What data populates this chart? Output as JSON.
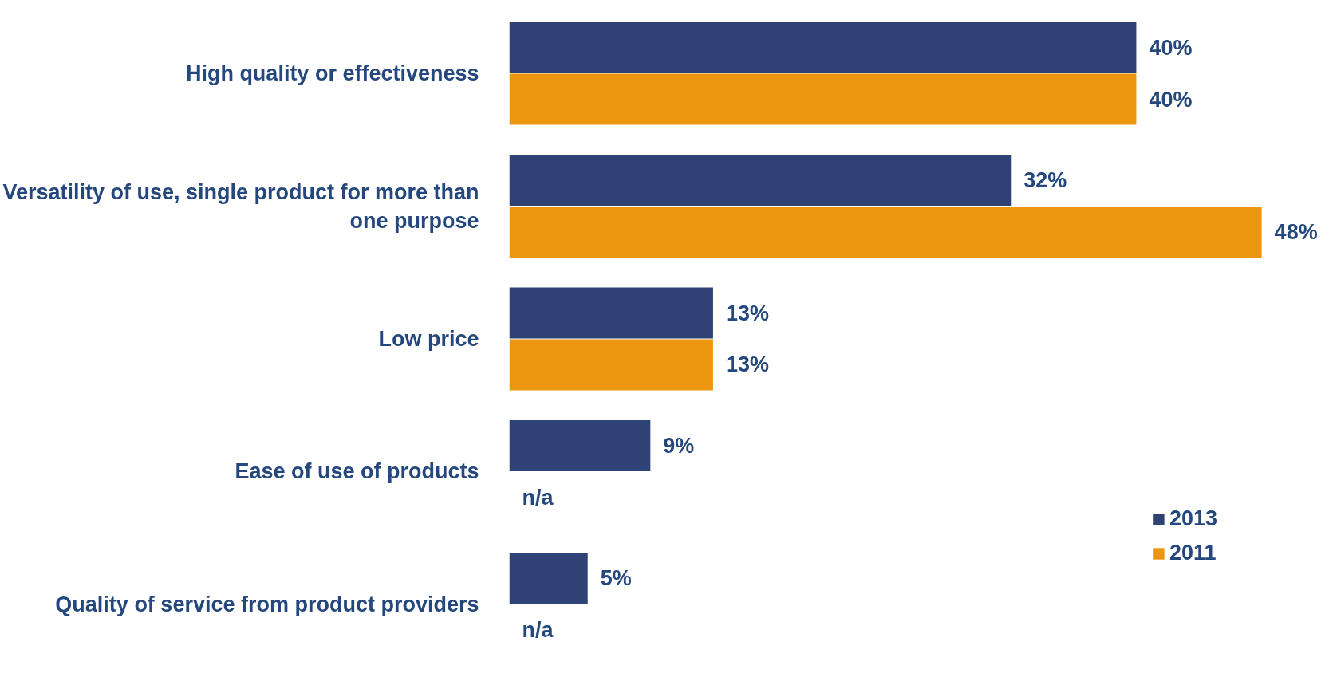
{
  "chart_data": {
    "type": "bar",
    "orientation": "horizontal",
    "categories": [
      "High quality or effectiveness",
      "Versatility of use, single product for more than one purpose",
      "Low price",
      "Ease of use of products",
      "Quality of service from product providers"
    ],
    "series": [
      {
        "name": "2013",
        "color": "#2e4275",
        "values": [
          40,
          32,
          13,
          9,
          5
        ],
        "value_labels": [
          "40%",
          "32%",
          "13%",
          "9%",
          "5%"
        ]
      },
      {
        "name": "2011",
        "color": "#ec960f",
        "values": [
          40,
          48,
          13,
          null,
          null
        ],
        "value_labels": [
          "40%",
          "48%",
          "13%",
          "n/a",
          "n/a"
        ]
      }
    ],
    "legend": "bottom right",
    "grid": false,
    "tick_labels": "y"
  }
}
